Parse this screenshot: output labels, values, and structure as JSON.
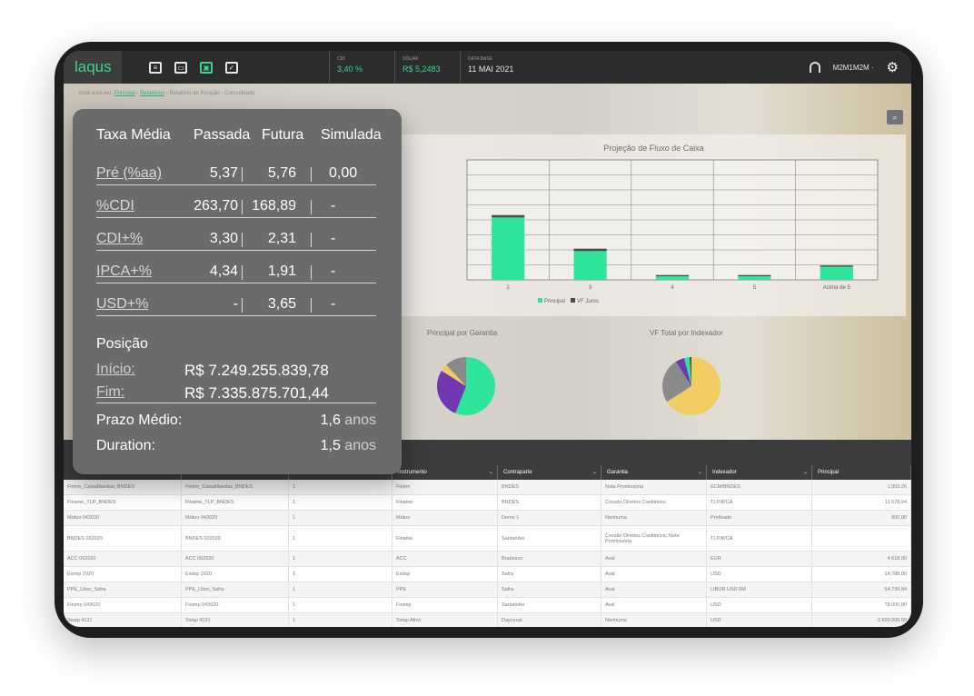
{
  "app": {
    "logo": "laqus"
  },
  "topbar": {
    "nav_icons": [
      {
        "name": "report-icon",
        "glyph": "≡",
        "active": false
      },
      {
        "name": "monitor-icon",
        "glyph": "▭",
        "active": false
      },
      {
        "name": "dashboard-icon",
        "glyph": "▣",
        "active": true
      },
      {
        "name": "clipboard-check-icon",
        "glyph": "✓",
        "active": false
      }
    ],
    "stats": [
      {
        "key": "CDI",
        "value": "3,40 %"
      },
      {
        "key": "DÓLAR",
        "value": "R$ 5,2483"
      },
      {
        "key": "DATA BASE",
        "value": "11 MAI 2021"
      }
    ],
    "user": "M2M1M2M ·",
    "headset_icon": "headset-icon",
    "gear_icon": "gear-icon"
  },
  "breadcrumb": {
    "prefix": "Você está em:",
    "item1": "Principal",
    "item2": "Relatórios",
    "current": "Relatório de Posição - Consolidado"
  },
  "cash_flow_chart": {
    "title": "Projeção de Fluxo de Caixa",
    "legend": [
      "Principal",
      "VF Juros"
    ]
  },
  "pie_charts": {
    "guarantee_title": "Principal por Garantia",
    "indexer_title": "VF Total por Indexador"
  },
  "overlay": {
    "headers": [
      "Taxa Média",
      "Passada",
      "Futura",
      "Simulada"
    ],
    "rows": [
      {
        "label": "Pré (%aa)",
        "past": "5,37",
        "future": "5,76",
        "simulated": "0,00"
      },
      {
        "label": "%CDI",
        "past": "263,70",
        "future": "168,89",
        "simulated": "-"
      },
      {
        "label": "CDI+%",
        "past": "3,30",
        "future": "2,31",
        "simulated": "-"
      },
      {
        "label": "IPCA+%",
        "past": "4,34",
        "future": "1,91",
        "simulated": "-"
      },
      {
        "label": "USD+%",
        "past": "-",
        "future": "3,65",
        "simulated": "-"
      }
    ],
    "position_title": "Posição",
    "start_label": "Início:",
    "start_value": "R$ 7.249.255.839,78",
    "end_label": "Fim:",
    "end_value": "R$ 7.335.875.701,44",
    "avg_term_label": "Prazo Médio:",
    "avg_term_value": "1,6",
    "avg_term_unit": "anos",
    "duration_label": "Duration:",
    "duration_value": "1,5",
    "duration_unit": "anos"
  },
  "table": {
    "columns": [
      "",
      "",
      "",
      "Instrumento",
      "Contraparte",
      "Garantia",
      "Indexador",
      "Principal"
    ],
    "rows": [
      [
        "Finem_CaixaMaedas_BNDES",
        "Finem_CaixaMaedas_BNDES",
        "1",
        "Finem",
        "BNDES",
        "Nota Promissória",
        "ECM/BNDES",
        "1.953.26"
      ],
      [
        "Finame_TLP_BNDES",
        "Finame_TLP_BNDES",
        "1",
        "Finame",
        "BNDES",
        "Cessão Direitos Creditórios",
        "TLP/IPCA",
        "11.578.94"
      ],
      [
        "Mútuo 043020",
        "Mútuo 043020",
        "1",
        "Mútuo",
        "Deme 1",
        "Nenhuma",
        "Prefixado",
        "800.00"
      ],
      [
        "BNDES 032020",
        "BNDES 032020",
        "1",
        "Finame",
        "Santander",
        "Cessão Direitos Creditórios, Nota Promissória",
        "TLP/IPCA",
        ""
      ],
      [
        "ACC 062020",
        "ACC 062020",
        "1",
        "ACC",
        "Bradesco",
        "Aval",
        "EUR",
        "4.618.00"
      ],
      [
        "Eximp 2020",
        "Eximp 2020",
        "1",
        "Eximp",
        "Safra",
        "Aval",
        "USD",
        "14.788.00"
      ],
      [
        "PPE_Libor_Safra",
        "PPE_Libor_Safra",
        "1",
        "PPE",
        "Safra",
        "Aval",
        "LIBOR USD 6M",
        "54.736.84"
      ],
      [
        "Finimp 043020",
        "Finimp 043020",
        "1",
        "Finimp",
        "Santander",
        "Aval",
        "USD",
        "78.000.00"
      ],
      [
        "Swap 4131",
        "Swap 4131",
        "1",
        "Swap Ativo",
        "Daycoval",
        "Nenhuma",
        "USD",
        "-2.600.000.00"
      ]
    ]
  },
  "chart_data": [
    {
      "type": "bar",
      "title": "Projeção de Fluxo de Caixa",
      "categories": [
        "2",
        "3",
        "4",
        "5",
        "Acima de 5"
      ],
      "series": [
        {
          "name": "Principal",
          "values": [
            0.52,
            0.24,
            0.03,
            0.03,
            0.11
          ],
          "color": "#2fe59a"
        },
        {
          "name": "VF Juros",
          "values": [
            0.02,
            0.02,
            0.01,
            0.01,
            0.01
          ],
          "color": "#4a4a4a"
        }
      ],
      "ylim": [
        0,
        1
      ],
      "grid": true,
      "legend": "bottom"
    },
    {
      "type": "pie",
      "title": "Principal por Garantia",
      "labels": [
        "",
        "",
        "",
        ""
      ],
      "values": [
        56,
        28,
        4,
        12
      ],
      "colors": [
        "#2fe59a",
        "#7238b3",
        "#f1cc63",
        "#8a8a8a"
      ]
    },
    {
      "type": "pie",
      "title": "VF Total por Indexador",
      "labels": [
        "",
        "",
        "",
        "",
        ""
      ],
      "values": [
        66,
        25,
        5,
        3,
        1
      ],
      "colors": [
        "#f1cc63",
        "#8a8a8a",
        "#7238b3",
        "#2fe59a",
        "#4a4a4a"
      ]
    }
  ]
}
